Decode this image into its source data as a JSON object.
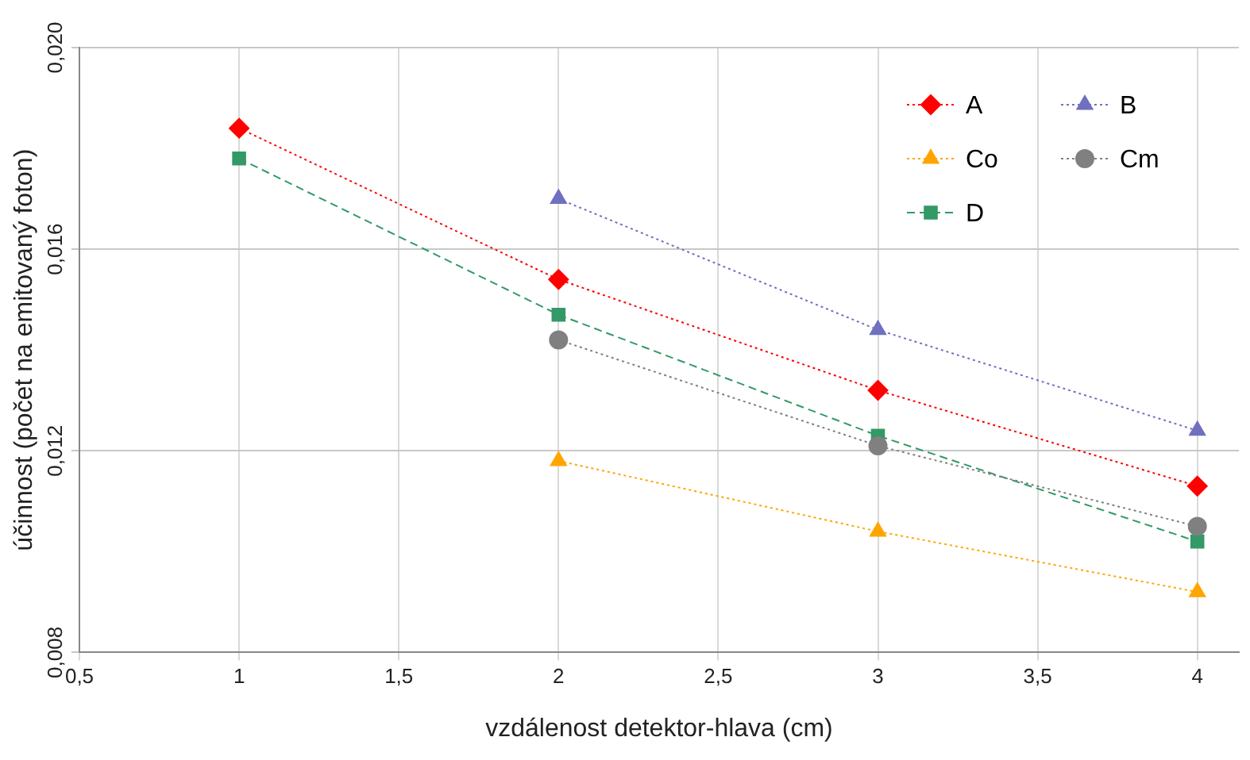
{
  "chart_data": {
    "type": "line",
    "xlabel": "vzdálenost detektor-hlava (cm)",
    "ylabel": "účinnost (počet na emitovaný foton)",
    "x": [
      1,
      2,
      3,
      4
    ],
    "series": [
      {
        "name": "A",
        "color": "#ff0000",
        "marker": "diamond",
        "line_style": "dotted",
        "values": [
          0.0184,
          0.0154,
          0.0132,
          0.0113
        ]
      },
      {
        "name": "B",
        "color": "#7070c0",
        "marker": "triangle",
        "line_style": "dotted",
        "values": [
          null,
          0.017,
          0.0144,
          0.0124
        ]
      },
      {
        "name": "Co",
        "color": "#ffa500",
        "marker": "triangle",
        "line_style": "dotted",
        "values": [
          null,
          0.0118,
          0.0104,
          0.0092
        ]
      },
      {
        "name": "Cm",
        "color": "#808080",
        "marker": "circle",
        "line_style": "dotted",
        "values": [
          null,
          0.0142,
          0.0121,
          0.0105
        ]
      },
      {
        "name": "D",
        "color": "#339966",
        "marker": "square",
        "line_style": "dashed",
        "values": [
          0.0178,
          0.0147,
          0.0123,
          0.0102
        ]
      }
    ],
    "xlim": [
      0.5,
      4.13
    ],
    "xticks": [
      {
        "value": 0.5,
        "label": "0,5"
      },
      1,
      {
        "value": 1.5,
        "label": "1,5"
      },
      2,
      {
        "value": 2.5,
        "label": "2,5"
      },
      3,
      {
        "value": 3.5,
        "label": "3,5"
      },
      4
    ],
    "ylim": [
      0.008,
      0.02
    ],
    "yticks": [
      {
        "value": 0.008,
        "label": "0,008"
      },
      {
        "value": 0.012,
        "label": "0,012"
      },
      {
        "value": 0.016,
        "label": "0,016"
      },
      {
        "value": 0.02,
        "label": "0,020"
      }
    ],
    "grid": true,
    "legend": "top right"
  }
}
